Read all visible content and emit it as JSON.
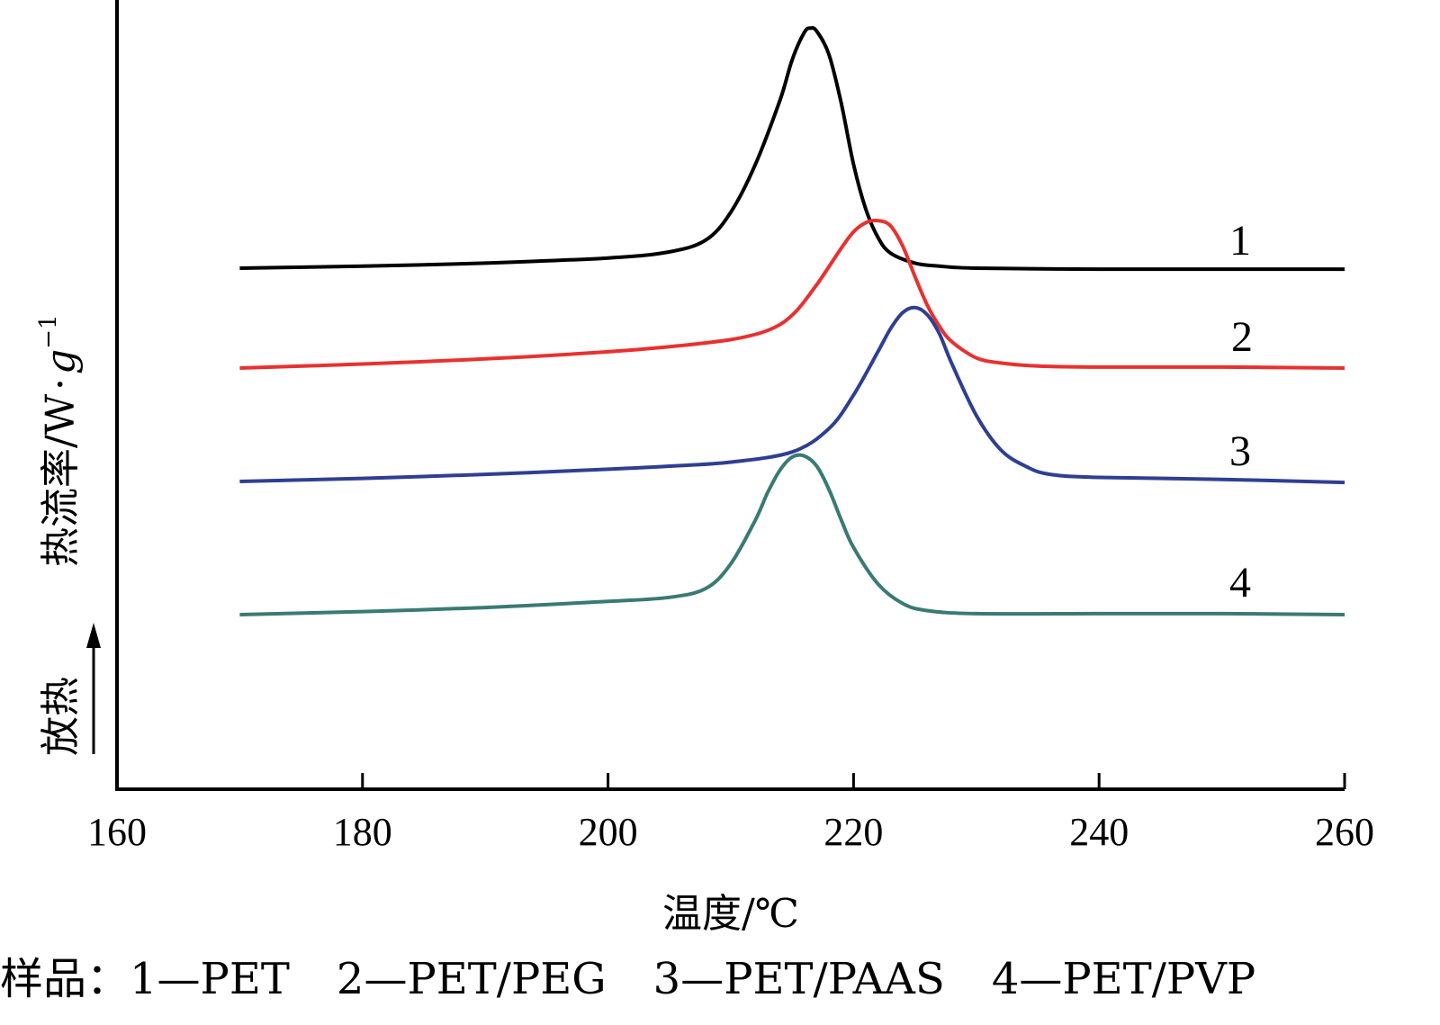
{
  "chart_data": {
    "type": "line",
    "title": "",
    "xlabel": "温度/℃",
    "ylabel": "热流率/W·g⁻¹",
    "ylabel_parts": {
      "main": "热流率/W",
      "dot": "·",
      "g": "g",
      "sup": "−1"
    },
    "direction_label": "放热",
    "xlim": [
      160,
      260
    ],
    "xticks": [
      160,
      180,
      200,
      220,
      240,
      260
    ],
    "y_ticks_shown": false,
    "grid": false,
    "legend": "caption-bottom",
    "series": [
      {
        "curve_label": "1",
        "color": "#000000",
        "x": [
          170,
          180,
          190,
          200,
          205,
          208,
          210,
          212,
          214,
          215,
          216,
          216.5,
          217,
          218,
          219,
          220,
          221,
          222,
          223,
          225,
          227,
          230,
          240,
          250,
          260
        ],
        "y": [
          0.0,
          0.02,
          0.05,
          0.1,
          0.16,
          0.28,
          0.55,
          1.02,
          1.65,
          2.05,
          2.32,
          2.36,
          2.33,
          2.1,
          1.62,
          1.02,
          0.58,
          0.3,
          0.15,
          0.05,
          0.02,
          0.0,
          -0.01,
          -0.01,
          -0.01
        ]
      },
      {
        "curve_label": "2",
        "color": "#e8312f",
        "x": [
          170,
          180,
          190,
          200,
          205,
          210,
          213,
          215,
          217,
          219,
          220,
          221,
          222,
          223,
          224,
          225,
          226,
          227,
          228,
          230,
          232,
          235,
          240,
          250,
          260
        ],
        "y": [
          0.0,
          0.04,
          0.09,
          0.16,
          0.21,
          0.28,
          0.37,
          0.52,
          0.82,
          1.18,
          1.34,
          1.43,
          1.45,
          1.4,
          1.2,
          0.9,
          0.62,
          0.41,
          0.26,
          0.1,
          0.05,
          0.02,
          0.01,
          0.01,
          0.0
        ]
      },
      {
        "curve_label": "3",
        "color": "#2e3f93",
        "x": [
          170,
          180,
          190,
          200,
          205,
          210,
          215,
          218,
          220,
          222,
          223,
          224,
          225,
          226,
          227,
          228,
          230,
          232,
          234,
          236,
          240,
          250,
          260
        ],
        "y": [
          0.0,
          0.03,
          0.07,
          0.12,
          0.15,
          0.19,
          0.29,
          0.52,
          0.85,
          1.28,
          1.5,
          1.66,
          1.71,
          1.64,
          1.45,
          1.16,
          0.65,
          0.31,
          0.15,
          0.07,
          0.04,
          0.02,
          -0.01
        ]
      },
      {
        "curve_label": "4",
        "color": "#3a7a74",
        "x": [
          170,
          180,
          190,
          200,
          205,
          208,
          210,
          212,
          213,
          214,
          215,
          216,
          217,
          218,
          219,
          220,
          222,
          224,
          226,
          230,
          240,
          250,
          260
        ],
        "y": [
          0.0,
          0.03,
          0.07,
          0.13,
          0.17,
          0.26,
          0.5,
          0.93,
          1.2,
          1.42,
          1.55,
          1.56,
          1.46,
          1.23,
          0.93,
          0.66,
          0.3,
          0.11,
          0.04,
          0.01,
          0.01,
          0.01,
          0.0
        ]
      }
    ]
  },
  "caption": {
    "prefix": "样品：",
    "items": [
      "1—PET",
      "2—PET/PEG",
      "3—PET/PAAS",
      "4—PET/PVP"
    ]
  }
}
